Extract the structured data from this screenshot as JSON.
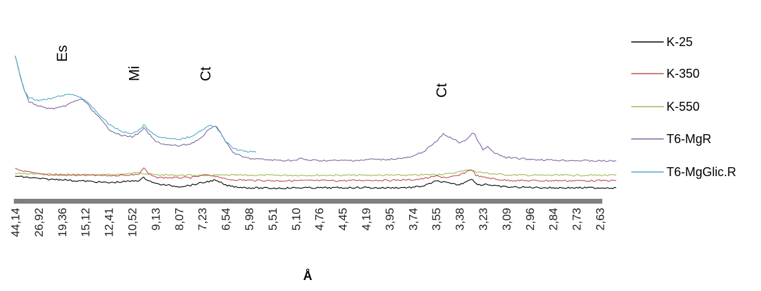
{
  "chart_data": {
    "type": "line",
    "title": "",
    "xlabel": "Å",
    "ylabel": "",
    "grid": false,
    "legend_position": "right",
    "x_axis": "categorical d-spacing (Å), decreasing left to right",
    "categories": [
      "44,14",
      "26,92",
      "19,36",
      "15,12",
      "12,41",
      "10,52",
      "9,13",
      "8,07",
      "7,23",
      "6,54",
      "5,98",
      "5,51",
      "5,10",
      "4,76",
      "4,45",
      "4,19",
      "3,95",
      "3,74",
      "3,55",
      "3,38",
      "3,23",
      "3,09",
      "2,96",
      "2,84",
      "2,73",
      "2,63"
    ],
    "annotations": [
      {
        "text": "Es",
        "at": "19,36"
      },
      {
        "text": "Mi",
        "at": "10,52"
      },
      {
        "text": "Ct",
        "at": "7,23"
      },
      {
        "text": "Ct",
        "at": "3,55"
      }
    ],
    "series": [
      {
        "name": "K-25",
        "color": "#000000",
        "points": [
          [
            0,
            0.28
          ],
          [
            0.5,
            0.25
          ],
          [
            1,
            0.22
          ],
          [
            1.5,
            0.2
          ],
          [
            2,
            0.2
          ],
          [
            2.5,
            0.17
          ],
          [
            3,
            0.16
          ],
          [
            3.5,
            0.14
          ],
          [
            4,
            0.12
          ],
          [
            4.5,
            0.14
          ],
          [
            5,
            0.16
          ],
          [
            5.3,
            0.18
          ],
          [
            5.5,
            0.24
          ],
          [
            5.7,
            0.18
          ],
          [
            6,
            0.1
          ],
          [
            6.5,
            0.06
          ],
          [
            7,
            0.03
          ],
          [
            7.5,
            0.06
          ],
          [
            8,
            0.12
          ],
          [
            8.5,
            0.18
          ],
          [
            8.8,
            0.12
          ],
          [
            9,
            0.06
          ],
          [
            9.5,
            0.02
          ],
          [
            10,
            0.0
          ],
          [
            11,
            -0.01
          ],
          [
            12,
            0.0
          ],
          [
            12.5,
            0.0
          ],
          [
            13,
            0.0
          ],
          [
            14,
            0.0
          ],
          [
            15,
            0.01
          ],
          [
            15.2,
            0.0
          ],
          [
            16,
            0.0
          ],
          [
            17,
            0.01
          ],
          [
            17.5,
            0.05
          ],
          [
            18,
            0.16
          ],
          [
            18.3,
            0.14
          ],
          [
            18.6,
            0.1
          ],
          [
            19,
            0.07
          ],
          [
            19.5,
            0.22
          ],
          [
            19.7,
            0.1
          ],
          [
            20,
            0.06
          ],
          [
            20.1,
            0.1
          ],
          [
            20.4,
            0.05
          ],
          [
            21,
            0.02
          ],
          [
            22,
            0.01
          ],
          [
            23,
            0.0
          ],
          [
            24,
            0.0
          ],
          [
            25,
            0.0
          ],
          [
            25.7,
            0.0
          ]
        ]
      },
      {
        "name": "K-350",
        "color": "#c0504d",
        "points": [
          [
            0,
            0.45
          ],
          [
            0.5,
            0.38
          ],
          [
            1,
            0.33
          ],
          [
            1.5,
            0.31
          ],
          [
            2,
            0.3
          ],
          [
            3,
            0.3
          ],
          [
            4,
            0.29
          ],
          [
            5,
            0.31
          ],
          [
            5.3,
            0.33
          ],
          [
            5.5,
            0.48
          ],
          [
            5.7,
            0.33
          ],
          [
            6,
            0.25
          ],
          [
            6.5,
            0.24
          ],
          [
            7,
            0.24
          ],
          [
            7.5,
            0.24
          ],
          [
            8,
            0.29
          ],
          [
            8.5,
            0.29
          ],
          [
            8.8,
            0.25
          ],
          [
            9,
            0.2
          ],
          [
            10,
            0.18
          ],
          [
            11,
            0.17
          ],
          [
            12,
            0.17
          ],
          [
            13,
            0.17
          ],
          [
            14,
            0.17
          ],
          [
            15,
            0.18
          ],
          [
            16,
            0.18
          ],
          [
            17,
            0.19
          ],
          [
            17.5,
            0.22
          ],
          [
            18,
            0.28
          ],
          [
            18.5,
            0.24
          ],
          [
            19,
            0.3
          ],
          [
            19.5,
            0.44
          ],
          [
            19.7,
            0.3
          ],
          [
            20,
            0.25
          ],
          [
            20.2,
            0.24
          ],
          [
            20.6,
            0.2
          ],
          [
            21,
            0.18
          ],
          [
            22,
            0.17
          ],
          [
            23,
            0.17
          ],
          [
            24,
            0.17
          ],
          [
            25,
            0.17
          ],
          [
            25.7,
            0.17
          ]
        ]
      },
      {
        "name": "K-550",
        "color": "#9bbb59",
        "points": [
          [
            0,
            0.34
          ],
          [
            1,
            0.33
          ],
          [
            2,
            0.32
          ],
          [
            3,
            0.31
          ],
          [
            4,
            0.31
          ],
          [
            5,
            0.34
          ],
          [
            5.3,
            0.38
          ],
          [
            5.5,
            0.34
          ],
          [
            6,
            0.31
          ],
          [
            7,
            0.3
          ],
          [
            8,
            0.3
          ],
          [
            9,
            0.3
          ],
          [
            10,
            0.3
          ],
          [
            11,
            0.3
          ],
          [
            12,
            0.3
          ],
          [
            13,
            0.3
          ],
          [
            14,
            0.3
          ],
          [
            15,
            0.3
          ],
          [
            16,
            0.3
          ],
          [
            17,
            0.3
          ],
          [
            17.5,
            0.31
          ],
          [
            18,
            0.32
          ],
          [
            18.5,
            0.33
          ],
          [
            19,
            0.38
          ],
          [
            19.3,
            0.44
          ],
          [
            19.6,
            0.4
          ],
          [
            20,
            0.36
          ],
          [
            20.5,
            0.33
          ],
          [
            21,
            0.31
          ],
          [
            22,
            0.3
          ],
          [
            23,
            0.3
          ],
          [
            24,
            0.3
          ],
          [
            25,
            0.3
          ],
          [
            25.7,
            0.3
          ]
        ]
      },
      {
        "name": "T6-MgR",
        "color": "#8064a2",
        "points": [
          [
            0,
            3.15
          ],
          [
            0.2,
            2.7
          ],
          [
            0.4,
            2.3
          ],
          [
            0.6,
            2.05
          ],
          [
            1,
            1.95
          ],
          [
            1.5,
            1.88
          ],
          [
            2,
            1.92
          ],
          [
            2.5,
            2.05
          ],
          [
            2.8,
            2.12
          ],
          [
            3,
            2.05
          ],
          [
            3.3,
            1.85
          ],
          [
            3.7,
            1.6
          ],
          [
            4,
            1.4
          ],
          [
            4.5,
            1.25
          ],
          [
            5,
            1.22
          ],
          [
            5.3,
            1.3
          ],
          [
            5.5,
            1.42
          ],
          [
            5.7,
            1.3
          ],
          [
            6,
            1.1
          ],
          [
            6.5,
            1.02
          ],
          [
            7,
            1.0
          ],
          [
            7.5,
            1.05
          ],
          [
            8,
            1.2
          ],
          [
            8.3,
            1.4
          ],
          [
            8.5,
            1.48
          ],
          [
            8.7,
            1.4
          ],
          [
            9,
            1.1
          ],
          [
            9.3,
            0.85
          ],
          [
            9.7,
            0.74
          ],
          [
            10,
            0.7
          ],
          [
            11,
            0.66
          ],
          [
            12,
            0.65
          ],
          [
            12.2,
            0.7
          ],
          [
            12.5,
            0.66
          ],
          [
            13,
            0.65
          ],
          [
            14,
            0.65
          ],
          [
            15,
            0.66
          ],
          [
            15.2,
            0.69
          ],
          [
            15.5,
            0.67
          ],
          [
            16,
            0.68
          ],
          [
            16.5,
            0.7
          ],
          [
            17,
            0.74
          ],
          [
            17.5,
            0.88
          ],
          [
            18,
            1.1
          ],
          [
            18.3,
            1.28
          ],
          [
            18.6,
            1.2
          ],
          [
            19,
            1.08
          ],
          [
            19.3,
            1.15
          ],
          [
            19.6,
            1.32
          ],
          [
            19.8,
            1.1
          ],
          [
            20,
            0.9
          ],
          [
            20.2,
            0.98
          ],
          [
            20.5,
            0.82
          ],
          [
            21,
            0.72
          ],
          [
            22,
            0.68
          ],
          [
            23,
            0.66
          ],
          [
            24,
            0.65
          ],
          [
            25,
            0.64
          ],
          [
            25.7,
            0.64
          ]
        ]
      },
      {
        "name": "T6-MgGlic.R",
        "color": "#4bacc6",
        "points": [
          [
            0,
            3.15
          ],
          [
            0.2,
            2.7
          ],
          [
            0.4,
            2.3
          ],
          [
            0.6,
            2.15
          ],
          [
            1,
            2.08
          ],
          [
            1.5,
            2.12
          ],
          [
            2,
            2.2
          ],
          [
            2.4,
            2.23
          ],
          [
            2.8,
            2.16
          ],
          [
            3,
            2.08
          ],
          [
            3.5,
            1.8
          ],
          [
            4,
            1.52
          ],
          [
            4.5,
            1.35
          ],
          [
            5,
            1.3
          ],
          [
            5.3,
            1.38
          ],
          [
            5.5,
            1.5
          ],
          [
            5.7,
            1.38
          ],
          [
            6,
            1.25
          ],
          [
            6.5,
            1.17
          ],
          [
            7,
            1.15
          ],
          [
            7.5,
            1.22
          ],
          [
            8,
            1.38
          ],
          [
            8.3,
            1.48
          ],
          [
            8.6,
            1.45
          ],
          [
            8.8,
            1.3
          ],
          [
            9,
            1.1
          ],
          [
            9.3,
            0.95
          ],
          [
            9.6,
            0.89
          ],
          [
            10,
            0.86
          ],
          [
            10.3,
            0.85
          ]
        ]
      }
    ],
    "legend": [
      "K-25",
      "K-350",
      "K-550",
      "T6-MgR",
      "T6-MgGlic.R"
    ]
  }
}
